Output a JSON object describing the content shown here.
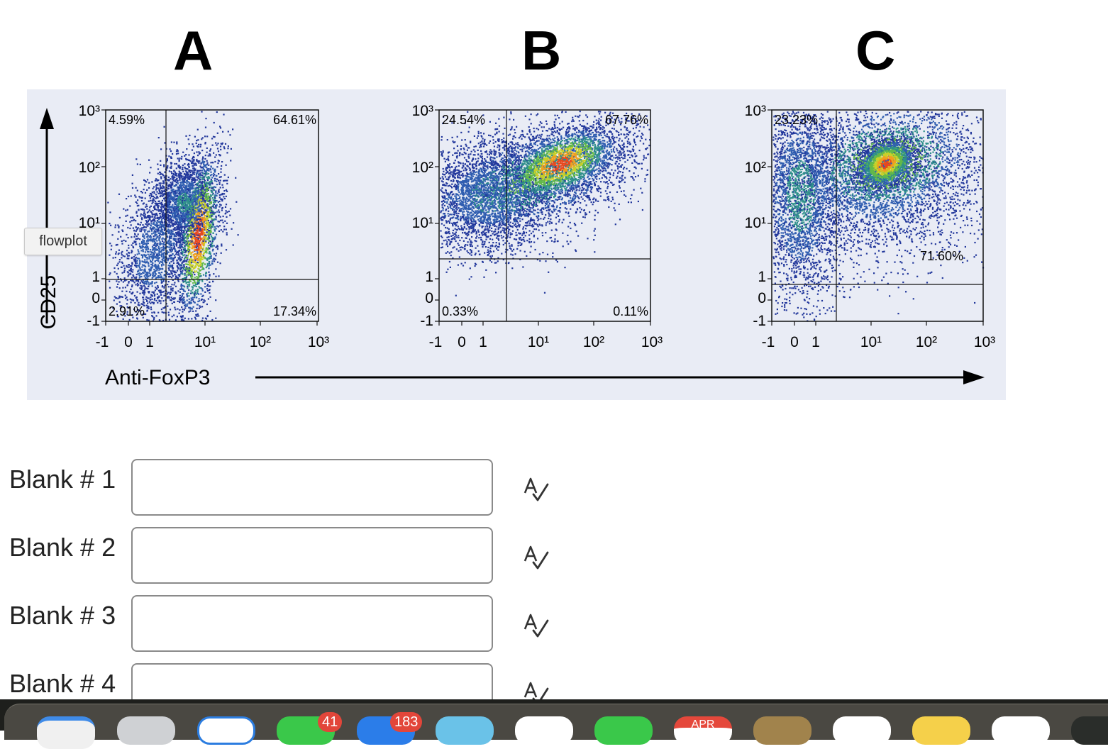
{
  "panel_letters": [
    "A",
    "B",
    "C"
  ],
  "tooltip": "flowplot",
  "chart_data": [
    {
      "type": "scatter",
      "panel": "A",
      "xlabel": "Anti-FoxP3",
      "ylabel": "CD25",
      "x_tick_labels": [
        "-1",
        "0",
        "1",
        "10¹",
        "10²",
        "10³"
      ],
      "y_tick_labels": [
        "-1",
        "0",
        "1",
        "10¹",
        "10²",
        "10³"
      ],
      "quadrants": {
        "top_left": "4.59%",
        "top_right": "64.61%",
        "bottom_left": "2.91%",
        "bottom_right": "17.34%"
      }
    },
    {
      "type": "scatter",
      "panel": "B",
      "x_tick_labels": [
        "-1",
        "0",
        "1",
        "10¹",
        "10²",
        "10³"
      ],
      "y_tick_labels": [
        "-1",
        "0",
        "1",
        "10¹",
        "10²",
        "10³"
      ],
      "quadrants": {
        "top_left": "24.54%",
        "top_right": "67.76%",
        "bottom_left": "0.33%",
        "bottom_right": "0.11%"
      }
    },
    {
      "type": "scatter",
      "panel": "C",
      "x_tick_labels": [
        "-1",
        "0",
        "1",
        "10¹",
        "10²",
        "10³"
      ],
      "y_tick_labels": [
        "-1",
        "0",
        "1",
        "10¹",
        "10²",
        "10³"
      ],
      "quadrants": {
        "top_left": "23.23%",
        "top_right": "71.60%"
      }
    }
  ],
  "blanks": [
    {
      "label": "Blank # 1",
      "value": ""
    },
    {
      "label": "Blank # 2",
      "value": ""
    },
    {
      "label": "Blank # 3",
      "value": ""
    },
    {
      "label": "Blank # 4",
      "value": ""
    }
  ],
  "dock": {
    "badges": [
      "41",
      "183"
    ],
    "calendar_month": "APR"
  }
}
